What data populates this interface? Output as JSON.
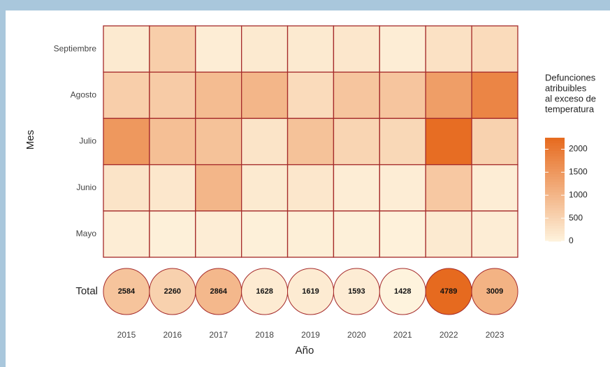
{
  "chart_data": {
    "type": "heatmap",
    "x_label": "Año",
    "y_label": "Mes",
    "categories": [
      "2015",
      "2016",
      "2017",
      "2018",
      "2019",
      "2020",
      "2021",
      "2022",
      "2023"
    ],
    "y_categories": [
      "Septiembre",
      "Agosto",
      "Julio",
      "Junio",
      "Mayo"
    ],
    "values": [
      [
        150,
        600,
        100,
        150,
        150,
        200,
        100,
        300,
        400
      ],
      [
        600,
        650,
        900,
        1000,
        400,
        750,
        750,
        1400,
        1800
      ],
      [
        1500,
        850,
        800,
        250,
        800,
        500,
        450,
        2200,
        550
      ],
      [
        250,
        200,
        1000,
        150,
        200,
        100,
        100,
        700,
        100
      ],
      [
        100,
        50,
        100,
        50,
        70,
        50,
        30,
        150,
        100
      ]
    ],
    "totals": {
      "label": "Total",
      "values": [
        2584,
        2260,
        2864,
        1628,
        1619,
        1593,
        1428,
        4789,
        3009
      ]
    },
    "legend_title": [
      "Defunciones",
      "atribuibles",
      "al exceso de",
      "temperatura"
    ],
    "clim": [
      0,
      2250
    ],
    "cticks": [
      0,
      500,
      1000,
      1500,
      2000
    ],
    "colors": [
      "#fef3dd",
      "#e66a1f"
    ],
    "border_color": "#a52a2a"
  }
}
